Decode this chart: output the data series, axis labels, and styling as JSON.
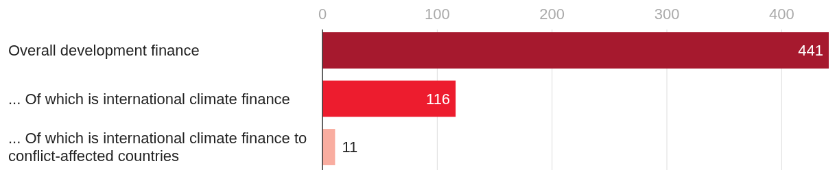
{
  "chart_data": {
    "type": "bar",
    "orientation": "horizontal",
    "categories": [
      "Overall development finance",
      "... Of which is international climate finance",
      "... Of which is international climate finance to conflict-affected countries"
    ],
    "values": [
      441,
      116,
      11
    ],
    "colors": [
      "#a6192e",
      "#ed1c2e",
      "#f9ada0"
    ],
    "xlim": [
      0,
      441
    ],
    "xticks": [
      0,
      100,
      200,
      300,
      400
    ],
    "grid": "x",
    "data_labels": true
  }
}
